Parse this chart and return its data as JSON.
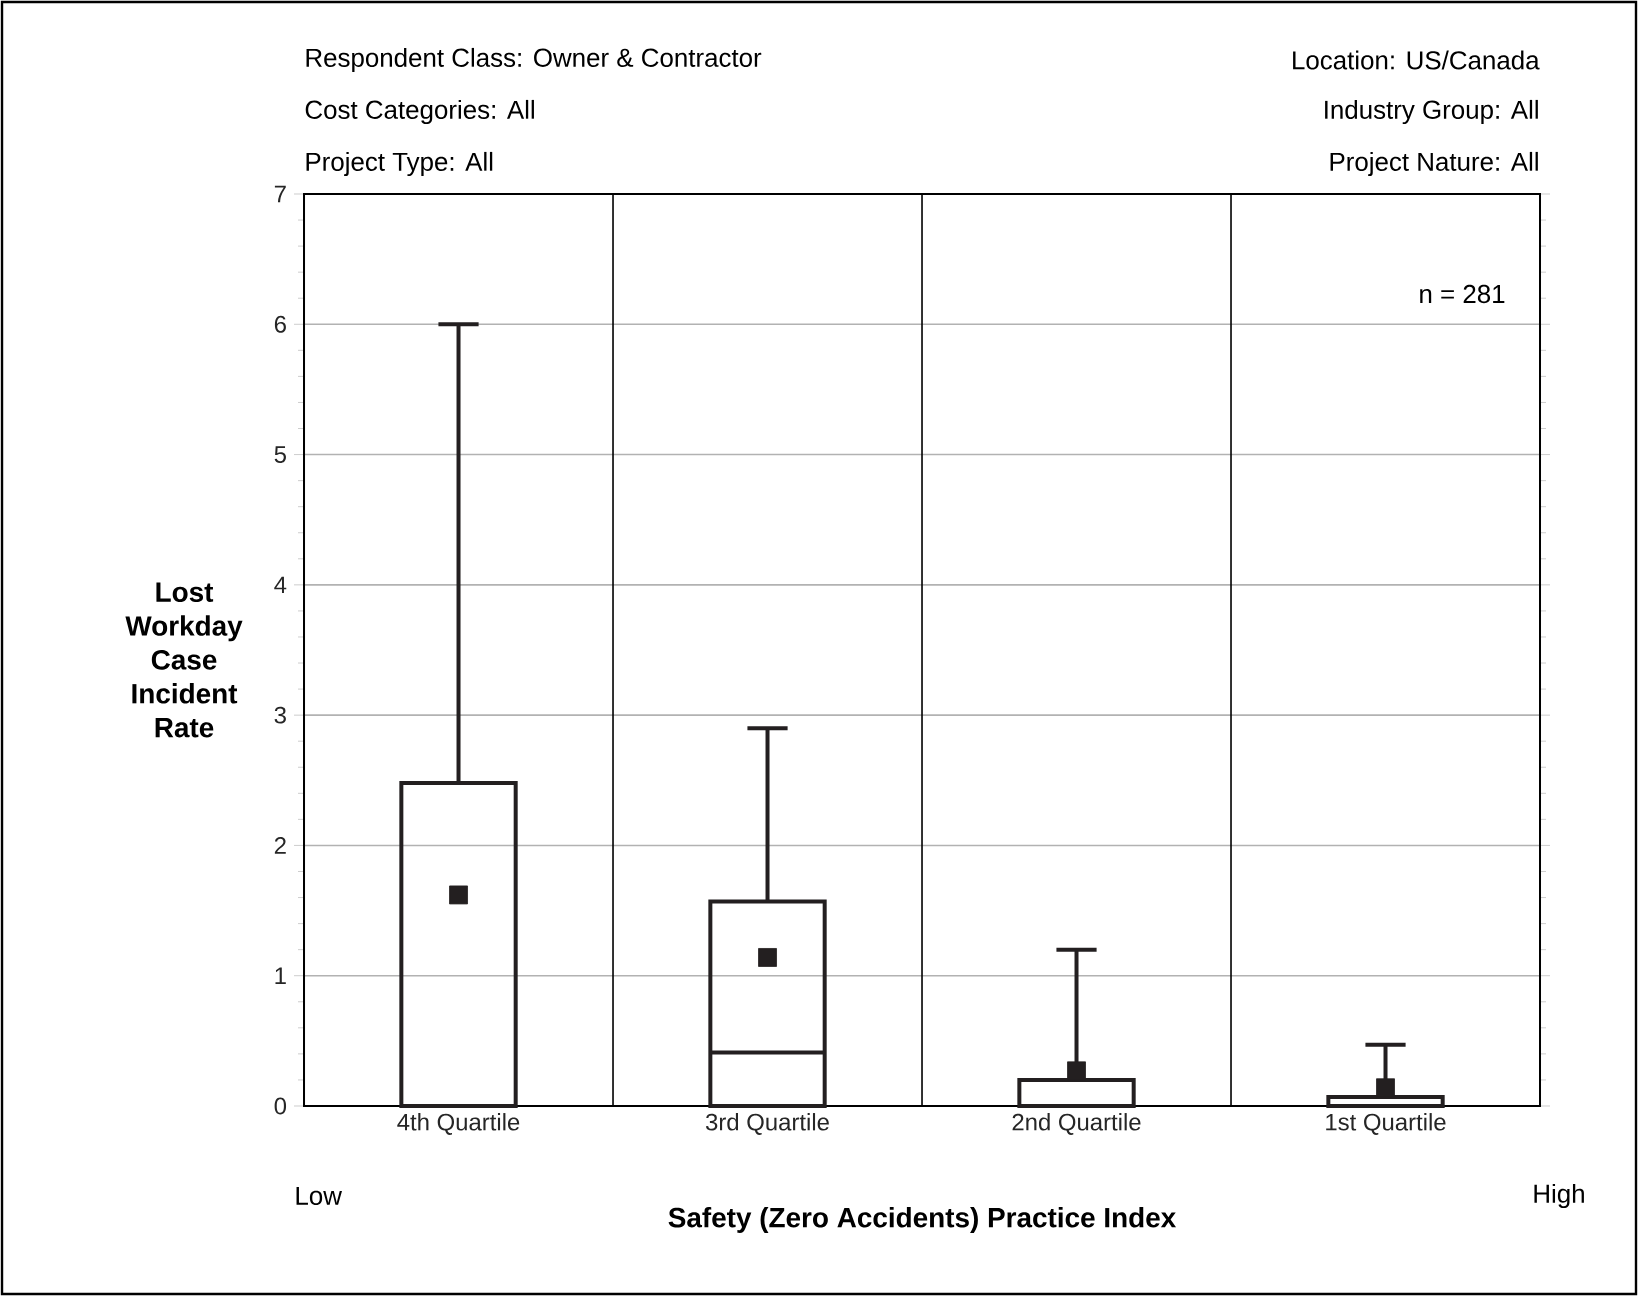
{
  "chart_data": {
    "type": "box",
    "xlabel": "Safety (Zero Accidents) Practice Index",
    "ylabel": "Lost Workday Case Incident Rate",
    "categories": [
      "4th Quartile",
      "3rd Quartile",
      "2nd Quartile",
      "1st Quartile"
    ],
    "boxes": [
      {
        "low": 0,
        "q1": 0,
        "median": 0,
        "q3": 2.48,
        "high": 6.0,
        "mean": 1.62
      },
      {
        "low": 0,
        "q1": 0,
        "median": 0.41,
        "q3": 1.57,
        "high": 2.9,
        "mean": 1.14
      },
      {
        "low": 0,
        "q1": 0,
        "median": 0,
        "q3": 0.2,
        "high": 1.2,
        "mean": 0.27
      },
      {
        "low": 0,
        "q1": 0,
        "median": 0,
        "q3": 0.07,
        "high": 0.47,
        "mean": 0.14
      }
    ],
    "color": "#231f20",
    "ylim": [
      0,
      7
    ],
    "yticks": [
      0,
      1,
      2,
      3,
      4,
      5,
      6,
      7
    ],
    "grid": true,
    "annotations": [
      "Respondent Class: Owner & Contractor",
      "Cost Categories:  All",
      "Project Type:  All",
      "Location: US/Canada",
      "Industry Group:  All",
      "Project Nature:  All",
      "n = 281",
      "Low",
      "High"
    ]
  }
}
